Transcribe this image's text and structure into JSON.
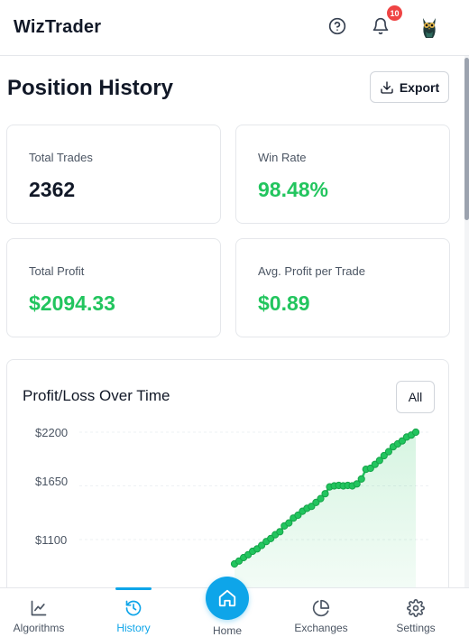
{
  "header": {
    "app_title": "WizTrader",
    "notification_count": "10"
  },
  "page": {
    "title": "Position History",
    "export_label": "Export"
  },
  "stats": [
    {
      "label": "Total Trades",
      "value": "2362"
    },
    {
      "label": "Win Rate",
      "value": "98.48%"
    },
    {
      "label": "Total Profit",
      "value": "$2094.33"
    },
    {
      "label": "Avg. Profit per Trade",
      "value": "$0.89"
    }
  ],
  "colors": {
    "accent": "#0ea5e9",
    "positive": "#22c55e",
    "badge": "#ef4444"
  },
  "chart": {
    "title": "Profit/Loss Over Time",
    "range_label": "All"
  },
  "chart_data": {
    "type": "area",
    "title": "Profit/Loss Over Time",
    "xlabel": "",
    "ylabel": "",
    "y_tick_labels": [
      "$2200",
      "$1650",
      "$1100"
    ],
    "ylim": [
      0,
      2200
    ],
    "grid": true,
    "series": [
      {
        "values": [
          850,
          880,
          915,
          945,
          980,
          1005,
          1040,
          1080,
          1110,
          1150,
          1180,
          1240,
          1270,
          1320,
          1350,
          1390,
          1420,
          1440,
          1480,
          1520,
          1570,
          1640,
          1650,
          1655,
          1650,
          1655,
          1650,
          1670,
          1720,
          1820,
          1830,
          1870,
          1910,
          1960,
          2000,
          2050,
          2080,
          2110,
          2150,
          2170,
          2200
        ]
      }
    ]
  },
  "nav": {
    "items": [
      {
        "label": "Algorithms",
        "icon": "line-chart-icon"
      },
      {
        "label": "History",
        "icon": "history-icon"
      },
      {
        "label": "Home",
        "icon": "home-icon"
      },
      {
        "label": "Exchanges",
        "icon": "pie-chart-icon"
      },
      {
        "label": "Settings",
        "icon": "gear-icon"
      }
    ]
  }
}
